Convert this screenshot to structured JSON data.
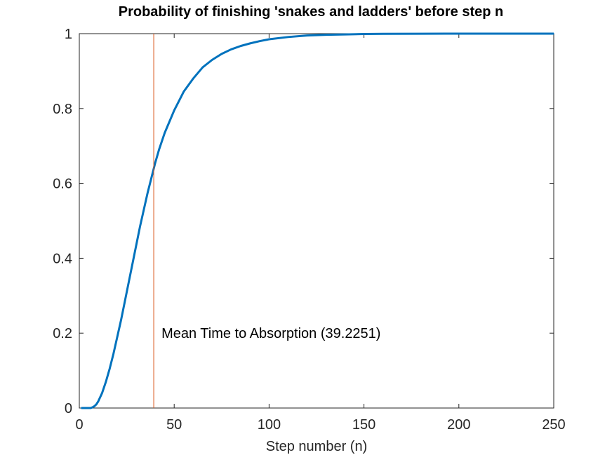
{
  "chart_data": {
    "type": "line",
    "title": "Probability of finishing 'snakes and ladders' before step n",
    "xlabel": "Step number (n)",
    "ylabel": "",
    "xlim": [
      0,
      250
    ],
    "ylim": [
      0,
      1
    ],
    "xticks": [
      0,
      50,
      100,
      150,
      200,
      250
    ],
    "yticks": [
      0,
      0.2,
      0.4,
      0.6,
      0.8,
      1
    ],
    "xtick_labels": [
      "0",
      "50",
      "100",
      "150",
      "200",
      "250"
    ],
    "ytick_labels": [
      "0",
      "0.2",
      "0.4",
      "0.6",
      "0.8",
      "1"
    ],
    "grid": false,
    "legend": "none",
    "series": [
      {
        "color": "#0072bd",
        "x": [
          1,
          2,
          3,
          4,
          5,
          6,
          7,
          8,
          9,
          10,
          12,
          14,
          16,
          18,
          20,
          22,
          24,
          26,
          28,
          30,
          32,
          34,
          36,
          38,
          40,
          42,
          45,
          50,
          55,
          60,
          65,
          70,
          75,
          80,
          85,
          90,
          95,
          100,
          110,
          120,
          130,
          140,
          150,
          160,
          180,
          200,
          220,
          250
        ],
        "y": [
          0,
          0,
          0,
          0,
          0,
          0,
          0.002,
          0.005,
          0.01,
          0.018,
          0.04,
          0.07,
          0.105,
          0.145,
          0.19,
          0.235,
          0.285,
          0.335,
          0.385,
          0.435,
          0.485,
          0.53,
          0.575,
          0.615,
          0.655,
          0.69,
          0.735,
          0.795,
          0.845,
          0.88,
          0.91,
          0.93,
          0.946,
          0.958,
          0.967,
          0.974,
          0.98,
          0.985,
          0.991,
          0.995,
          0.997,
          0.998,
          0.999,
          0.9995,
          0.9998,
          1,
          1,
          1
        ]
      }
    ],
    "reference_line": {
      "x": 39.2251,
      "color": "#d95319",
      "label": "Mean Time to Absorption (39.2251)",
      "label_y": 0.2
    }
  }
}
